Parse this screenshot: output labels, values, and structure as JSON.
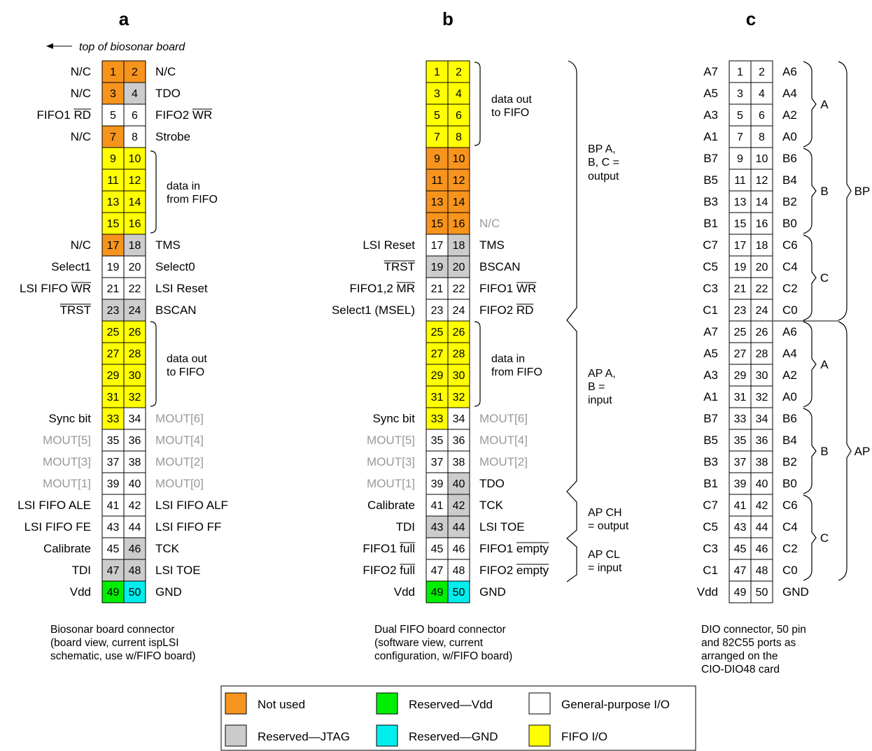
{
  "colors": {
    "not_used": "#f7941d",
    "jtag": "#cccccc",
    "vdd": "#00ee00",
    "gnd": "#00eeee",
    "gpio": "#ffffff",
    "fifo": "#ffff00",
    "grey_text": "#999999"
  },
  "top_note": "top of biosonar board",
  "legend": [
    {
      "key": "N",
      "label": "Not used"
    },
    {
      "key": "V",
      "label": "Reserved—Vdd"
    },
    {
      "key": "W",
      "label": "General-purpose I/O"
    },
    {
      "key": "J",
      "label": "Reserved—JTAG"
    },
    {
      "key": "G",
      "label": "Reserved—GND"
    },
    {
      "key": "Y",
      "label": "FIFO I/O"
    }
  ],
  "panels": [
    {
      "id": "a",
      "heading": "a",
      "caption": [
        "Biosonar board connector",
        "(board view, current ispLSI",
        "schematic, use w/FIFO board)"
      ],
      "colors": "NNNJWWNWYYYYYYYYNJWWWWJJYYYYYYYYYWWWWWWWWWWWWJJJVG",
      "rows": [
        {
          "l": "N/C",
          "r": "N/C"
        },
        {
          "l": "N/C",
          "r": "TDO"
        },
        {
          "l": "FIFO1 RD",
          "r": "FIFO2 WR"
        },
        {
          "l": "N/C",
          "r": "Strobe"
        },
        {
          "l": "",
          "r": ""
        },
        {
          "l": "",
          "r": ""
        },
        {
          "l": "",
          "r": ""
        },
        {
          "l": "",
          "r": ""
        },
        {
          "l": "N/C",
          "r": "TMS"
        },
        {
          "l": "Select1",
          "r": "Select0"
        },
        {
          "l": "LSI FIFO WR",
          "r": "LSI Reset"
        },
        {
          "l": "TRST",
          "r": "BSCAN"
        },
        {
          "l": "",
          "r": ""
        },
        {
          "l": "",
          "r": ""
        },
        {
          "l": "",
          "r": ""
        },
        {
          "l": "",
          "r": ""
        },
        {
          "l": "Sync bit",
          "r": "MOUT[6]"
        },
        {
          "l": "MOUT[5]",
          "r": "MOUT[4]"
        },
        {
          "l": "MOUT[3]",
          "r": "MOUT[2]"
        },
        {
          "l": "MOUT[1]",
          "r": "MOUT[0]"
        },
        {
          "l": "LSI FIFO ALE",
          "r": "LSI FIFO ALF"
        },
        {
          "l": "LSI FIFO FE",
          "r": "LSI FIFO FF"
        },
        {
          "l": "Calibrate",
          "r": "TCK"
        },
        {
          "l": "TDI",
          "r": "LSI TOE"
        },
        {
          "l": "Vdd",
          "r": "GND"
        }
      ],
      "groups": [
        {
          "lines": [
            "data in",
            "from FIFO"
          ]
        },
        {
          "lines": [
            "data out",
            "to FIFO"
          ]
        }
      ]
    },
    {
      "id": "b",
      "heading": "b",
      "caption": [
        "Dual FIFO board connector",
        "(software view, current",
        "configuration, w/FIFO board)"
      ],
      "colors": "YYYYYYYYNNNNNNNNWJJJWWWWYYYYYYYYYWWWWWWJWJJJWWWWVG",
      "rows": [
        {
          "l": "",
          "r": ""
        },
        {
          "l": "",
          "r": ""
        },
        {
          "l": "",
          "r": ""
        },
        {
          "l": "",
          "r": ""
        },
        {
          "l": "",
          "r": ""
        },
        {
          "l": "",
          "r": ""
        },
        {
          "l": "",
          "r": ""
        },
        {
          "l": "",
          "r": "N/C"
        },
        {
          "l": "LSI Reset",
          "r": "TMS"
        },
        {
          "l": "TRST",
          "r": "BSCAN"
        },
        {
          "l": "FIFO1,2 MR",
          "r": "FIFO1 WR"
        },
        {
          "l": "Select1 (MSEL)",
          "r": "FIFO2 RD"
        },
        {
          "l": "",
          "r": ""
        },
        {
          "l": "",
          "r": ""
        },
        {
          "l": "",
          "r": ""
        },
        {
          "l": "",
          "r": ""
        },
        {
          "l": "Sync bit",
          "r": "MOUT[6]"
        },
        {
          "l": "MOUT[5]",
          "r": "MOUT[4]"
        },
        {
          "l": "MOUT[3]",
          "r": "MOUT[2]"
        },
        {
          "l": "MOUT[1]",
          "r": "TDO"
        },
        {
          "l": "Calibrate",
          "r": "TCK"
        },
        {
          "l": "TDI",
          "r": "LSI TOE"
        },
        {
          "l": "FIFO1 full",
          "r": "FIFO1 empty"
        },
        {
          "l": "FIFO2 full",
          "r": "FIFO2 empty"
        },
        {
          "l": "Vdd",
          "r": "GND"
        }
      ],
      "groups": [
        {
          "lines": [
            "data out",
            "to FIFO"
          ]
        },
        {
          "lines": [
            "data in",
            "from FIFO"
          ]
        }
      ],
      "sections": [
        {
          "lines": [
            "BP A,",
            "B, C =",
            "output"
          ]
        },
        {
          "lines": [
            "AP A,",
            "B =",
            "input"
          ]
        },
        {
          "lines": [
            "AP CH",
            "= output"
          ]
        },
        {
          "lines": [
            "AP CL",
            "= input"
          ]
        }
      ]
    },
    {
      "id": "c",
      "heading": "c",
      "caption": [
        "DIO connector, 50 pin",
        "and 82C55 ports as",
        "arranged on the",
        "CIO-DIO48 card"
      ],
      "colors": "WWWWWWWWWWWWWWWWWWWWWWWWWWWWWWWWWWWWWWWWWWWWWWWWWW",
      "rows": [
        {
          "l": "A7",
          "r": "A6"
        },
        {
          "l": "A5",
          "r": "A4"
        },
        {
          "l": "A3",
          "r": "A2"
        },
        {
          "l": "A1",
          "r": "A0"
        },
        {
          "l": "B7",
          "r": "B6"
        },
        {
          "l": "B5",
          "r": "B4"
        },
        {
          "l": "B3",
          "r": "B2"
        },
        {
          "l": "B1",
          "r": "B0"
        },
        {
          "l": "C7",
          "r": "C6"
        },
        {
          "l": "C5",
          "r": "C4"
        },
        {
          "l": "C3",
          "r": "C2"
        },
        {
          "l": "C1",
          "r": "C0"
        },
        {
          "l": "A7",
          "r": "A6"
        },
        {
          "l": "A5",
          "r": "A4"
        },
        {
          "l": "A3",
          "r": "A2"
        },
        {
          "l": "A1",
          "r": "A0"
        },
        {
          "l": "B7",
          "r": "B6"
        },
        {
          "l": "B5",
          "r": "B4"
        },
        {
          "l": "B3",
          "r": "B2"
        },
        {
          "l": "B1",
          "r": "B0"
        },
        {
          "l": "C7",
          "r": "C6"
        },
        {
          "l": "C5",
          "r": "C4"
        },
        {
          "l": "C3",
          "r": "C2"
        },
        {
          "l": "C1",
          "r": "C0"
        },
        {
          "l": "Vdd",
          "r": "GND"
        }
      ],
      "ports": [
        "A",
        "B",
        "C",
        "A",
        "B",
        "C"
      ],
      "big_ports": [
        "BP",
        "AP"
      ]
    }
  ]
}
